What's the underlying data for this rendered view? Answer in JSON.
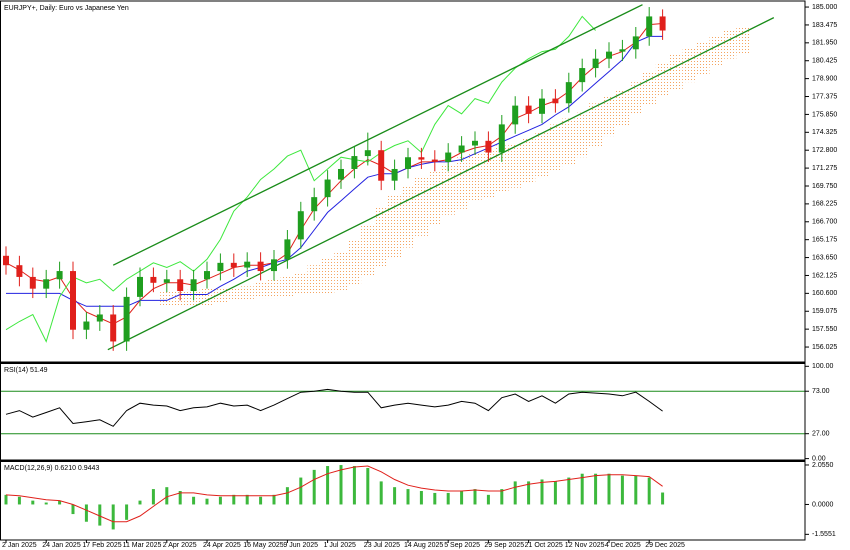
{
  "chart_data": [
    {
      "type": "candlestick",
      "title": "EURJPY+, Daily:  Euro vs Japanese Yen",
      "categories": [
        "2 Jan 2025",
        null,
        null,
        "24 Jan 2025",
        null,
        null,
        "17 Feb 2025",
        null,
        null,
        "11 Mar 2025",
        null,
        null,
        "2 Apr 2025",
        null,
        null,
        "24 Apr 2025",
        null,
        null,
        "16 May 2025",
        null,
        null,
        "9 Jun 2025",
        null,
        null,
        "1 Jul 2025",
        null,
        null,
        "23 Jul 2025",
        null,
        null,
        "14 Aug 2025",
        null,
        null,
        "5 Sep 2025",
        null,
        null,
        "29 Sep 2025",
        null,
        null,
        "21 Oct 2025",
        null,
        null,
        "12 Nov 2025",
        null,
        null,
        "4 Dec 2025",
        null,
        null,
        "29 Dec 2025",
        null,
        null,
        null,
        null,
        null,
        null,
        null
      ],
      "open": [
        163.8,
        163.0,
        162.0,
        161.0,
        161.8,
        162.5,
        157.5,
        158.2,
        158.8,
        156.5,
        160.3,
        162.0,
        161.5,
        161.8,
        160.8,
        161.8,
        162.5,
        163.2,
        162.8,
        163.3,
        162.5,
        163.5,
        165.2,
        167.6,
        168.8,
        170.3,
        171.2,
        172.3,
        172.8,
        170.2,
        171.2,
        172.2,
        172.0,
        171.8,
        172.6,
        173.2,
        173.6,
        172.6,
        175.0,
        176.6,
        175.9,
        177.2,
        176.8,
        178.6,
        179.8,
        180.6,
        181.2,
        181.4,
        182.5,
        184.2,
        null,
        null,
        null,
        null,
        null,
        null
      ],
      "high": [
        164.6,
        163.8,
        162.8,
        162.6,
        163.3,
        163.3,
        159.0,
        159.6,
        159.6,
        161.1,
        162.8,
        162.8,
        162.6,
        162.6,
        162.6,
        163.3,
        164.0,
        164.0,
        164.1,
        164.1,
        164.3,
        166.0,
        168.4,
        169.6,
        171.1,
        172.0,
        173.1,
        174.3,
        173.6,
        172.0,
        173.0,
        173.0,
        172.8,
        173.4,
        174.0,
        174.4,
        174.4,
        175.8,
        177.4,
        177.4,
        178.0,
        178.0,
        179.4,
        180.6,
        181.4,
        182.0,
        182.2,
        183.3,
        185.0,
        184.8,
        null,
        null,
        null,
        null,
        null,
        null
      ],
      "low": [
        162.2,
        161.2,
        160.2,
        160.2,
        161.0,
        156.7,
        156.7,
        157.4,
        155.7,
        155.7,
        159.5,
        160.7,
        160.7,
        160.0,
        160.0,
        161.0,
        161.7,
        162.0,
        162.0,
        161.7,
        161.7,
        162.7,
        164.4,
        166.8,
        168.0,
        169.5,
        170.4,
        171.5,
        169.4,
        169.4,
        170.4,
        171.2,
        171.0,
        171.0,
        171.8,
        172.4,
        171.8,
        171.8,
        174.2,
        175.1,
        175.1,
        176.0,
        176.0,
        177.8,
        179.0,
        179.8,
        180.4,
        180.6,
        181.7,
        182.2,
        null,
        null,
        null,
        null,
        null,
        null
      ],
      "close": [
        163.0,
        162.0,
        161.0,
        161.8,
        162.5,
        157.5,
        158.2,
        158.8,
        156.5,
        160.3,
        162.0,
        161.5,
        161.8,
        160.8,
        161.8,
        162.5,
        163.2,
        162.8,
        163.3,
        162.5,
        163.5,
        165.2,
        167.6,
        168.8,
        170.3,
        171.2,
        172.3,
        172.8,
        170.2,
        171.2,
        172.2,
        172.0,
        171.8,
        172.6,
        173.2,
        173.6,
        172.6,
        175.0,
        176.6,
        175.9,
        177.2,
        176.8,
        178.6,
        179.8,
        180.6,
        181.2,
        181.4,
        182.5,
        184.2,
        183.0,
        null,
        null,
        null,
        null,
        null,
        null
      ],
      "up_color": "#1f9e1f",
      "down_color": "#e0201b",
      "series": [
        {
          "color": "#e0201b",
          "values": [
            163.2,
            162.6,
            161.8,
            161.6,
            162.0,
            160.2,
            159.0,
            158.5,
            158.0,
            158.6,
            160.0,
            161.0,
            161.5,
            161.5,
            161.3,
            161.8,
            162.3,
            162.8,
            163.0,
            163.0,
            163.2,
            164.0,
            166.0,
            167.8,
            169.0,
            170.2,
            171.2,
            172.0,
            171.5,
            170.8,
            171.3,
            171.8,
            171.8,
            172.0,
            172.6,
            173.0,
            173.2,
            174.0,
            175.5,
            176.0,
            176.6,
            177.0,
            177.8,
            179.0,
            180.0,
            180.8,
            181.2,
            182.0,
            183.5,
            183.6,
            null,
            null,
            null,
            null,
            null,
            null
          ]
        },
        {
          "color": "#2323e0",
          "values": [
            160.6,
            160.6,
            160.6,
            160.6,
            160.6,
            160.0,
            159.5,
            159.5,
            159.5,
            159.5,
            160.0,
            160.0,
            160.0,
            160.5,
            160.5,
            160.5,
            161.2,
            161.8,
            162.5,
            162.8,
            163.2,
            163.5,
            164.5,
            166.0,
            167.5,
            168.5,
            169.5,
            170.5,
            170.8,
            170.8,
            171.3,
            171.6,
            171.8,
            171.8,
            172.0,
            172.5,
            173.0,
            173.5,
            174.0,
            174.5,
            175.0,
            175.8,
            176.5,
            177.5,
            178.5,
            179.5,
            180.5,
            182.0,
            182.5,
            182.5,
            null,
            null,
            null,
            null,
            null,
            null
          ]
        },
        {
          "color": "#3ee83e",
          "values": [
            157.5,
            158.2,
            158.8,
            156.5,
            160.3,
            162.0,
            161.5,
            161.8,
            160.8,
            161.8,
            162.5,
            163.2,
            162.8,
            163.3,
            162.5,
            163.5,
            165.2,
            167.6,
            168.8,
            170.3,
            171.2,
            172.3,
            172.8,
            170.2,
            171.2,
            172.2,
            172.0,
            171.8,
            172.6,
            173.2,
            173.6,
            172.6,
            175.0,
            176.6,
            175.9,
            177.2,
            176.8,
            178.6,
            179.8,
            180.6,
            181.2,
            181.4,
            182.5,
            184.2,
            183.0,
            null,
            null,
            null,
            null,
            null,
            null,
            null,
            null,
            null,
            null,
            null
          ]
        }
      ],
      "cloud": {
        "color": "#f4a460",
        "upper": [
          null,
          null,
          null,
          null,
          null,
          null,
          null,
          null,
          null,
          null,
          null,
          null,
          160.8,
          160.8,
          160.9,
          161.0,
          161.0,
          161.1,
          161.2,
          161.5,
          161.8,
          162.0,
          162.4,
          163.0,
          163.6,
          164.2,
          165.2,
          166.5,
          168.0,
          169.0,
          169.8,
          170.5,
          171.0,
          171.5,
          172.2,
          172.5,
          172.8,
          173.2,
          173.4,
          173.8,
          174.3,
          175.0,
          175.5,
          176.0,
          176.8,
          177.5,
          178.0,
          178.6,
          179.5,
          180.2,
          181.0,
          181.5,
          182.0,
          182.6,
          183.0,
          183.3
        ],
        "lower": [
          null,
          null,
          null,
          null,
          null,
          null,
          null,
          null,
          null,
          null,
          null,
          null,
          159.6,
          159.6,
          159.6,
          159.6,
          159.8,
          160.0,
          160.0,
          160.2,
          160.2,
          160.3,
          160.5,
          160.5,
          160.6,
          160.8,
          161.3,
          162.0,
          162.8,
          163.6,
          164.5,
          165.5,
          166.5,
          167.3,
          167.8,
          168.4,
          168.8,
          169.2,
          169.6,
          170.0,
          170.6,
          171.0,
          171.6,
          172.2,
          173.0,
          174.0,
          174.8,
          175.8,
          176.6,
          177.4,
          178.0,
          178.6,
          179.2,
          180.0,
          180.6,
          181.0
        ]
      },
      "trend_lines": [
        {
          "color": "#1a8c1a",
          "x": [
            8,
            47.5
          ],
          "y": [
            163.0,
            185.2
          ]
        },
        {
          "color": "#1a8c1a",
          "x": [
            7.6,
            57.3
          ],
          "y": [
            155.8,
            184.1
          ]
        }
      ],
      "ylim": [
        154.75,
        185.43
      ],
      "yticks": [
        {
          "value": 185,
          "label": "185.000"
        },
        {
          "value": 183.475,
          "label": "183.475"
        },
        {
          "value": 181.95,
          "label": "181.950"
        },
        {
          "value": 180.425,
          "label": "180.425"
        },
        {
          "value": 178.9,
          "label": "178.900"
        },
        {
          "value": 177.375,
          "label": "177.375"
        },
        {
          "value": 175.85,
          "label": "175.850"
        },
        {
          "value": 174.325,
          "label": "174.325"
        },
        {
          "value": 172.8,
          "label": "172.800"
        },
        {
          "value": 171.275,
          "label": "171.275"
        },
        {
          "value": 169.75,
          "label": "169.750"
        },
        {
          "value": 168.225,
          "label": "168.225"
        },
        {
          "value": 166.7,
          "label": "166.700"
        },
        {
          "value": 165.175,
          "label": "165.175"
        },
        {
          "value": 163.65,
          "label": "163.650"
        },
        {
          "value": 162.125,
          "label": "162.125"
        },
        {
          "value": 160.6,
          "label": "160.600"
        },
        {
          "value": 159.075,
          "label": "159.075"
        },
        {
          "value": 157.55,
          "label": "157.550"
        },
        {
          "value": 156.025,
          "label": "156.025"
        }
      ]
    },
    {
      "type": "line",
      "title": "RSI(14) 51.49",
      "color": "#000000",
      "values": [
        48,
        52,
        45,
        50,
        55,
        38,
        40,
        42,
        35,
        52,
        60,
        58,
        57,
        52,
        55,
        56,
        60,
        57,
        58,
        52,
        58,
        65,
        72,
        73,
        75,
        73,
        72,
        72,
        55,
        58,
        60,
        58,
        56,
        58,
        62,
        60,
        52,
        66,
        70,
        62,
        68,
        60,
        70,
        72,
        71,
        70,
        68,
        72,
        62,
        51.49
      ],
      "levels": [
        73,
        27
      ],
      "level_color": "#1a8c1a",
      "ylim": [
        -1.5,
        102.5
      ],
      "yticks": [
        {
          "value": 100,
          "label": "100.00"
        },
        {
          "value": 73,
          "label": "73.00"
        },
        {
          "value": 27,
          "label": "27.00"
        },
        {
          "value": 0,
          "label": "0.00"
        }
      ]
    },
    {
      "type": "combo",
      "title": "MACD(12,26,9) 0.6210 0.9443",
      "color": "#3cb83c",
      "values": [
        0.5,
        0.4,
        0.2,
        0.1,
        0.2,
        -0.5,
        -0.9,
        -1.1,
        -1.3,
        -0.8,
        0.2,
        0.8,
        0.9,
        0.7,
        0.4,
        0.3,
        0.4,
        0.5,
        0.5,
        0.4,
        0.5,
        0.9,
        1.4,
        1.8,
        2.0,
        2.05,
        2.0,
        1.9,
        1.2,
        0.9,
        0.8,
        0.7,
        0.6,
        0.6,
        0.7,
        0.8,
        0.5,
        0.8,
        1.2,
        1.2,
        1.3,
        1.2,
        1.4,
        1.6,
        1.6,
        1.6,
        1.5,
        1.5,
        1.4,
        0.621
      ],
      "signal": {
        "color": "#e0201b",
        "values": [
          0.5,
          0.45,
          0.35,
          0.25,
          0.2,
          0.0,
          -0.3,
          -0.6,
          -0.9,
          -0.9,
          -0.6,
          -0.1,
          0.4,
          0.6,
          0.6,
          0.5,
          0.45,
          0.45,
          0.45,
          0.45,
          0.45,
          0.6,
          0.9,
          1.3,
          1.6,
          1.8,
          1.95,
          2.0,
          1.7,
          1.3,
          1.0,
          0.85,
          0.75,
          0.7,
          0.7,
          0.75,
          0.7,
          0.7,
          0.9,
          1.05,
          1.15,
          1.2,
          1.3,
          1.4,
          1.5,
          1.55,
          1.55,
          1.5,
          1.45,
          0.944
        ]
      },
      "ylim": [
        -1.85,
        2.21
      ],
      "yticks": [
        {
          "value": 2.055,
          "label": "2.0550"
        },
        {
          "value": 0,
          "label": "0.0000"
        },
        {
          "value": -1.5551,
          "label": "-1.5551"
        }
      ]
    }
  ]
}
